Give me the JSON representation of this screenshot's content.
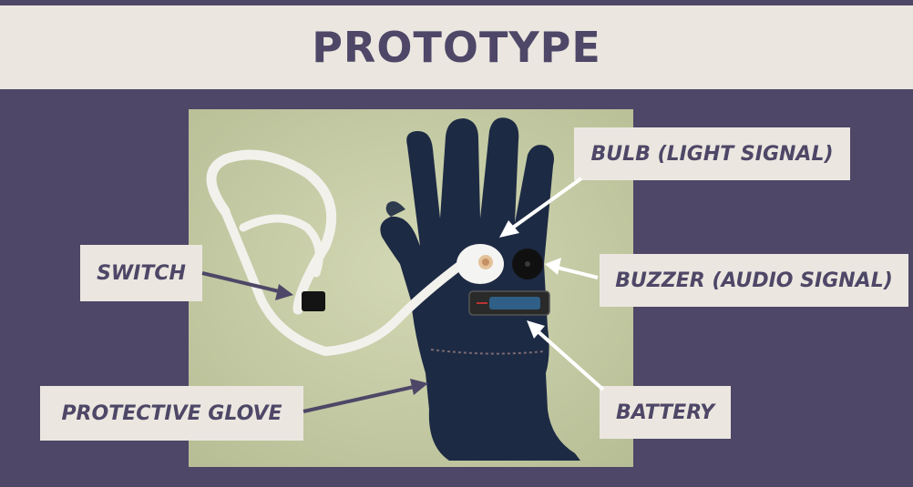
{
  "slide": {
    "title": "PROTOTYPE"
  },
  "labels": {
    "bulb": "BULB (LIGHT SIGNAL)",
    "buzzer": "BUZZER (AUDIO SIGNAL)",
    "switch": "SWITCH",
    "glove": "PROTECTIVE GLOVE",
    "battery": "BATTERY"
  },
  "colors": {
    "background": "#4e4767",
    "banner": "#ebe7e0",
    "text": "#4e4767",
    "photo_backdrop": "#c9cfa9",
    "glove": "#1d2a44"
  }
}
